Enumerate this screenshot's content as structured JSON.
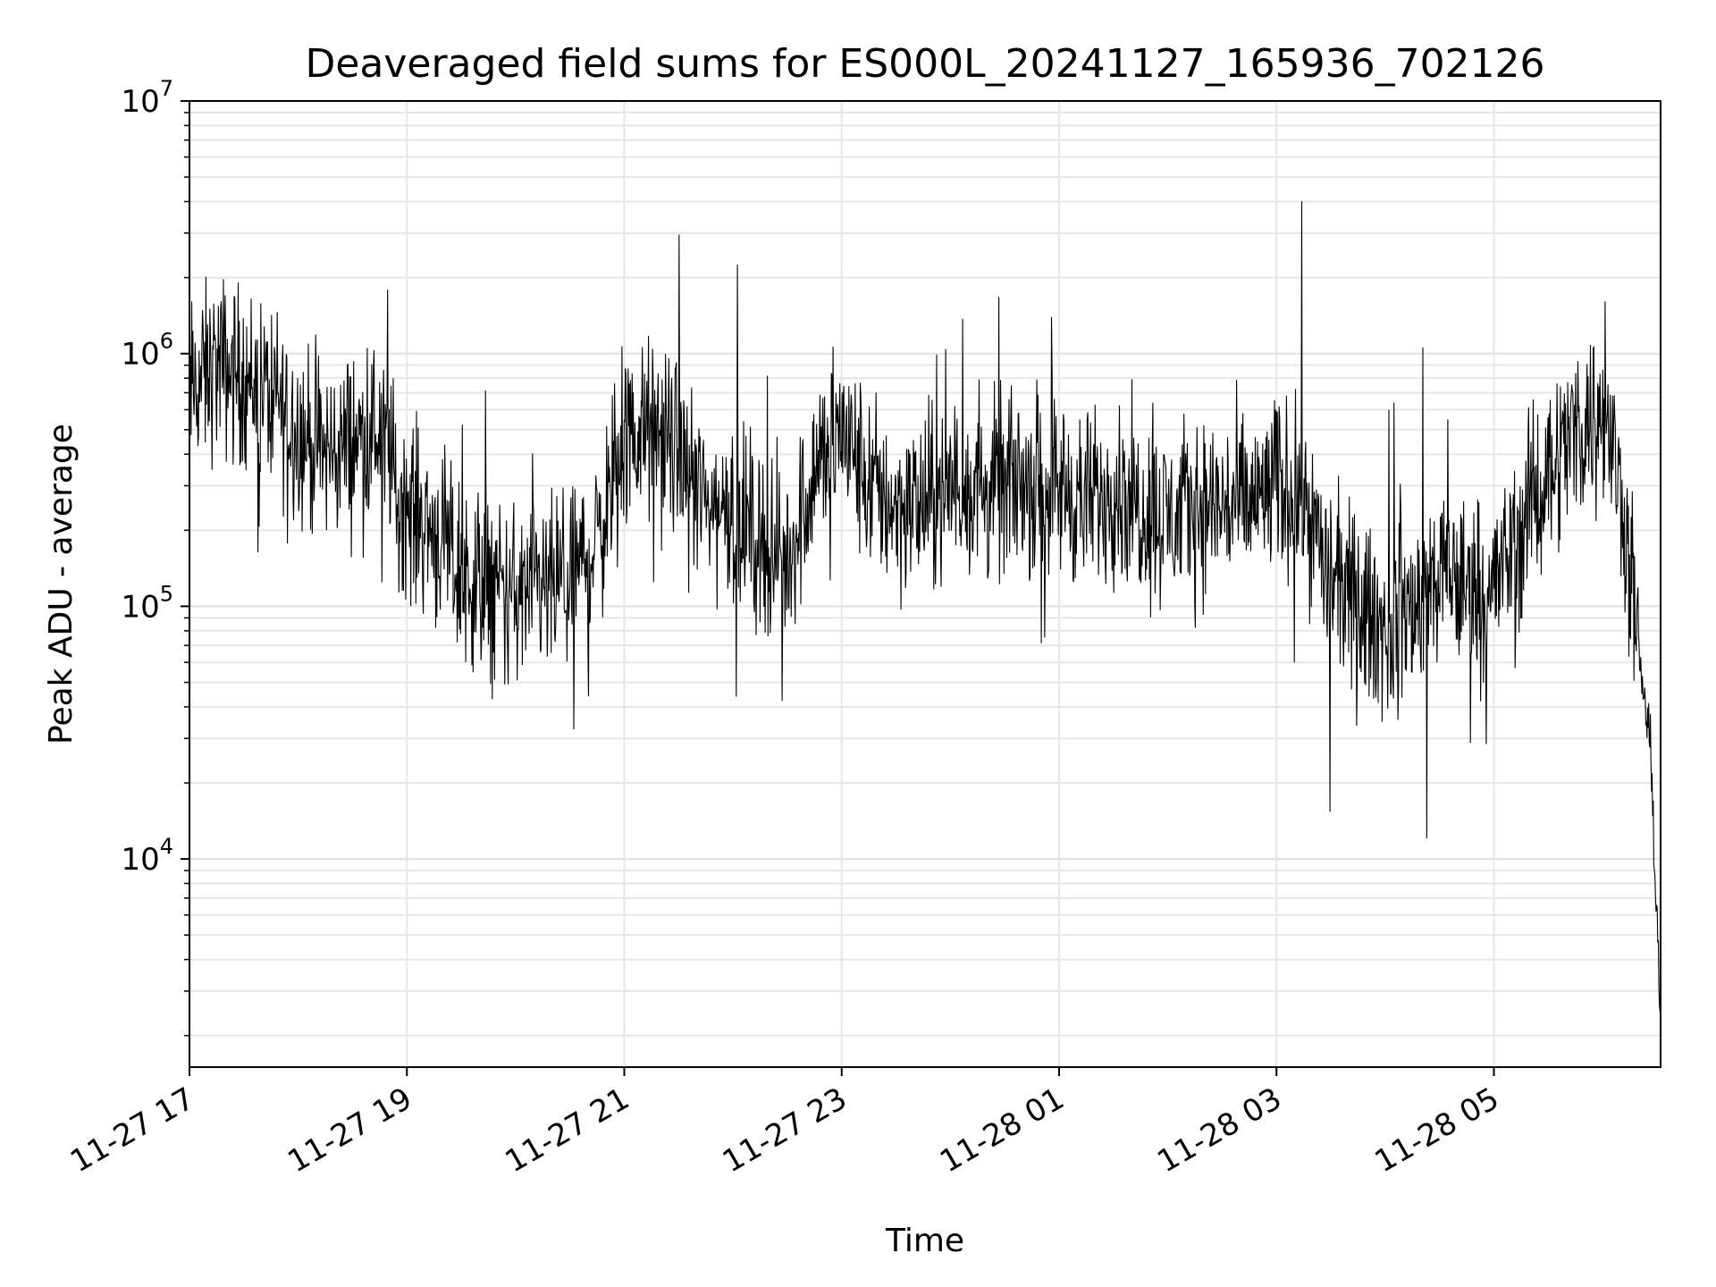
{
  "chart_data": {
    "type": "line",
    "title": "Deaveraged field sums for ES000L_20241127_165936_702126",
    "xlabel": "Time",
    "ylabel": "Peak ADU - average",
    "y_scale": "log",
    "ylim": [
      1500,
      10000000
    ],
    "xlim": [
      "2024-11-27 17:00",
      "2024-11-28 06:32"
    ],
    "x_ticks": [
      "11-27 17",
      "11-27 19",
      "11-27 21",
      "11-27 23",
      "11-28 01",
      "11-28 03",
      "11-28 05"
    ],
    "y_ticks": [
      {
        "base": "10",
        "exp": "4",
        "value": 10000
      },
      {
        "base": "10",
        "exp": "5",
        "value": 100000
      },
      {
        "base": "10",
        "exp": "6",
        "value": 1000000
      },
      {
        "base": "10",
        "exp": "7",
        "value": 10000000
      }
    ],
    "grid": true,
    "line_color": "#000000",
    "series": [
      {
        "x": [
          "2024-11-27 17:00",
          "2024-11-27 17:15",
          "2024-11-27 17:30",
          "2024-11-27 17:45",
          "2024-11-27 18:00",
          "2024-11-27 18:15",
          "2024-11-27 18:30",
          "2024-11-27 18:45",
          "2024-11-27 19:00",
          "2024-11-27 19:15",
          "2024-11-27 19:30",
          "2024-11-27 19:45",
          "2024-11-27 20:00",
          "2024-11-27 20:15",
          "2024-11-27 20:30",
          "2024-11-27 20:45",
          "2024-11-27 21:00",
          "2024-11-27 21:15",
          "2024-11-27 21:30",
          "2024-11-27 21:45",
          "2024-11-27 22:00",
          "2024-11-27 22:15",
          "2024-11-27 22:30",
          "2024-11-27 22:45",
          "2024-11-27 23:00",
          "2024-11-27 23:15",
          "2024-11-27 23:30",
          "2024-11-27 23:45",
          "2024-11-28 00:00",
          "2024-11-28 00:15",
          "2024-11-28 00:30",
          "2024-11-28 00:45",
          "2024-11-28 01:00",
          "2024-11-28 01:15",
          "2024-11-28 01:30",
          "2024-11-28 01:45",
          "2024-11-28 02:00",
          "2024-11-28 02:15",
          "2024-11-28 02:30",
          "2024-11-28 02:45",
          "2024-11-28 03:00",
          "2024-11-28 03:15",
          "2024-11-28 03:30",
          "2024-11-28 03:45",
          "2024-11-28 04:00",
          "2024-11-28 04:15",
          "2024-11-28 04:30",
          "2024-11-28 04:45",
          "2024-11-28 05:00",
          "2024-11-28 05:15",
          "2024-11-28 05:30",
          "2024-11-28 05:45",
          "2024-11-28 06:00",
          "2024-11-28 06:10",
          "2024-11-28 06:20",
          "2024-11-28 06:26",
          "2024-11-28 06:30",
          "2024-11-28 06:32"
        ],
        "y": [
          700000,
          900000,
          800000,
          700000,
          500000,
          400000,
          450000,
          500000,
          250000,
          200000,
          130000,
          120000,
          110000,
          110000,
          130000,
          180000,
          450000,
          500000,
          400000,
          250000,
          250000,
          180000,
          150000,
          350000,
          500000,
          300000,
          250000,
          250000,
          300000,
          280000,
          300000,
          320000,
          300000,
          250000,
          300000,
          250000,
          220000,
          250000,
          250000,
          250000,
          300000,
          280000,
          120000,
          100000,
          80000,
          100000,
          130000,
          120000,
          120000,
          200000,
          350000,
          500000,
          600000,
          300000,
          60000,
          30000,
          6000,
          2300
        ]
      }
    ]
  }
}
